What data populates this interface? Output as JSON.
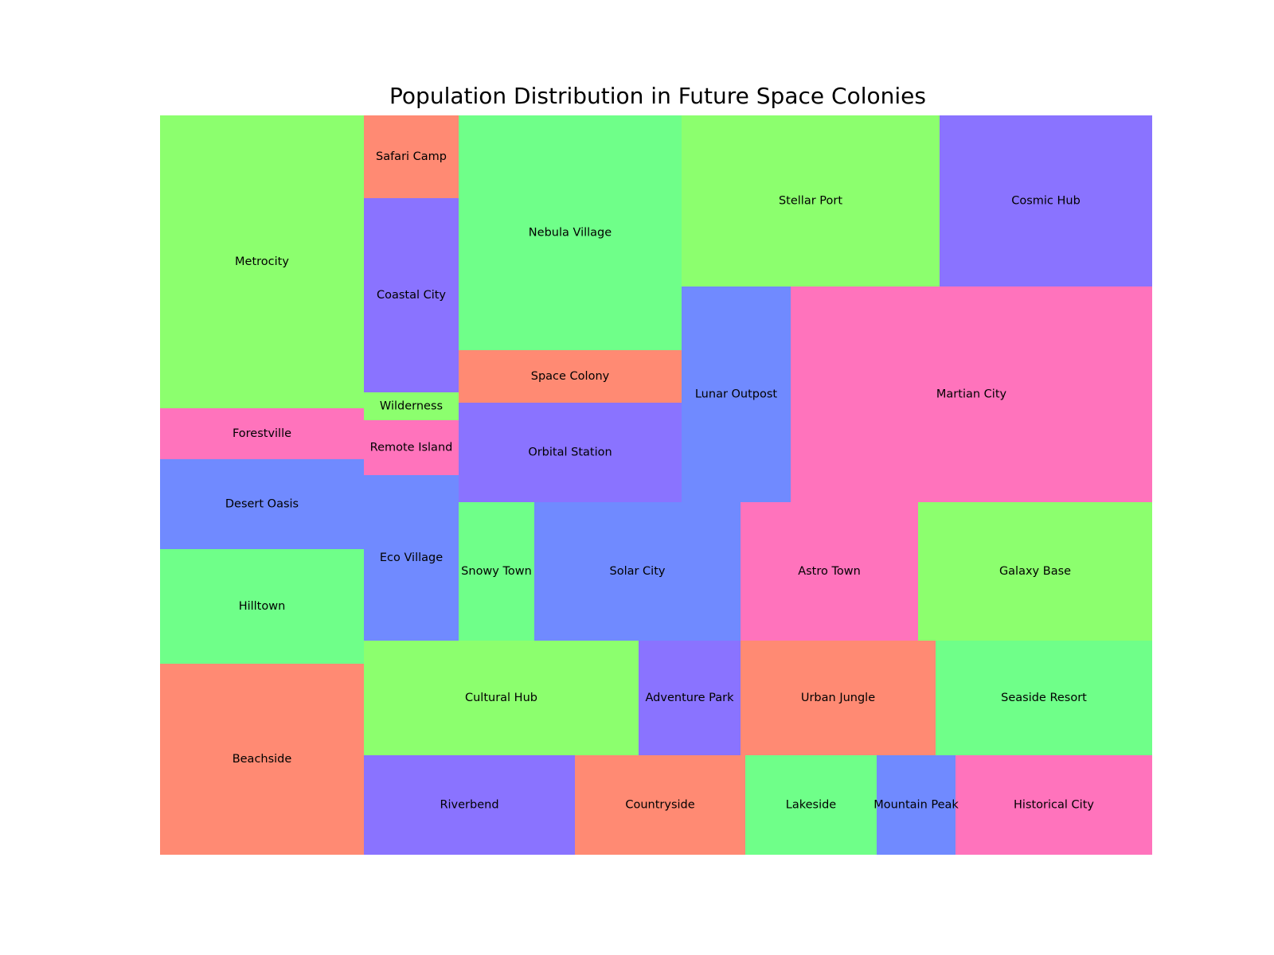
{
  "chart_data": {
    "type": "treemap",
    "title": "Population Distribution in Future Space Colonies",
    "colors": {
      "coral": "#ff8a73",
      "lime": "#8cff6e",
      "mint": "#6fff89",
      "violet": "#8a73ff",
      "blue": "#708aff",
      "pink": "#ff73bc"
    },
    "cells": [
      {
        "label": "Metrocity",
        "color": "lime",
        "area_share": 0.0638
      },
      {
        "label": "Forestville",
        "color": "pink",
        "area_share": 0.0112
      },
      {
        "label": "Desert Oasis",
        "color": "blue",
        "area_share": 0.0196
      },
      {
        "label": "Hilltown",
        "color": "mint",
        "area_share": 0.0249
      },
      {
        "label": "Beachside",
        "color": "coral",
        "area_share": 0.0416
      },
      {
        "label": "Safari Camp",
        "color": "coral",
        "area_share": 0.0107
      },
      {
        "label": "Coastal City",
        "color": "violet",
        "area_share": 0.0249
      },
      {
        "label": "Wilderness",
        "color": "lime",
        "area_share": 0.0036
      },
      {
        "label": "Remote Island",
        "color": "pink",
        "area_share": 0.0071
      },
      {
        "label": "Eco Village",
        "color": "blue",
        "area_share": 0.0213
      },
      {
        "label": "Nebula Village",
        "color": "mint",
        "area_share": 0.0704
      },
      {
        "label": "Space Colony",
        "color": "coral",
        "area_share": 0.0159
      },
      {
        "label": "Orbital Station",
        "color": "violet",
        "area_share": 0.0301
      },
      {
        "label": "Stellar Port",
        "color": "lime",
        "area_share": 0.0597
      },
      {
        "label": "Cosmic Hub",
        "color": "violet",
        "area_share": 0.0491
      },
      {
        "label": "Lunar Outpost",
        "color": "blue",
        "area_share": 0.0318
      },
      {
        "label": "Martian City",
        "color": "pink",
        "area_share": 0.1065
      },
      {
        "label": "Snowy Town",
        "color": "mint",
        "area_share": 0.0143
      },
      {
        "label": "Solar City",
        "color": "blue",
        "area_share": 0.0389
      },
      {
        "label": "Astro Town",
        "color": "pink",
        "area_share": 0.0335
      },
      {
        "label": "Galaxy Base",
        "color": "lime",
        "area_share": 0.0443
      },
      {
        "label": "Cultural Hub",
        "color": "lime",
        "area_share": 0.0427
      },
      {
        "label": "Adventure Park",
        "color": "violet",
        "area_share": 0.0159
      },
      {
        "label": "Urban Jungle",
        "color": "coral",
        "area_share": 0.0302
      },
      {
        "label": "Seaside Resort",
        "color": "mint",
        "area_share": 0.0336
      },
      {
        "label": "Riverbend",
        "color": "violet",
        "area_share": 0.0287
      },
      {
        "label": "Countryside",
        "color": "coral",
        "area_share": 0.0231
      },
      {
        "label": "Lakeside",
        "color": "mint",
        "area_share": 0.0178
      },
      {
        "label": "Mountain Peak",
        "color": "blue",
        "area_share": 0.0107
      },
      {
        "label": "Historical City",
        "color": "pink",
        "area_share": 0.0267
      }
    ]
  }
}
